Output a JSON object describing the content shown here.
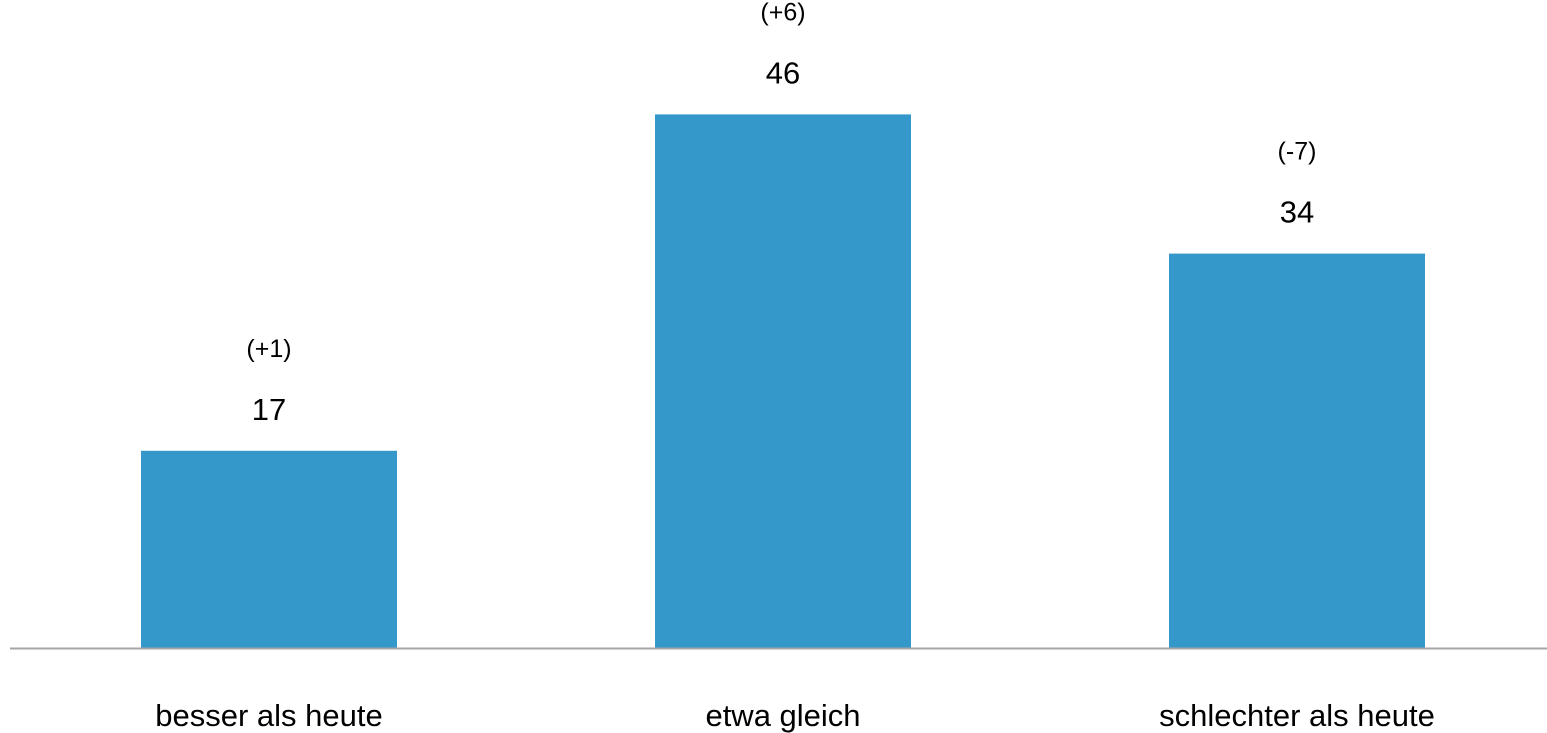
{
  "chart_data": {
    "type": "bar",
    "categories": [
      "besser als heute",
      "etwa gleich",
      "schlechter als heute"
    ],
    "values": [
      17,
      46,
      34
    ],
    "change_labels": [
      "(+1)",
      "(+6)",
      "(-7)"
    ],
    "title": "",
    "xlabel": "",
    "ylabel": "",
    "ylim": [
      0,
      50
    ],
    "grid": false,
    "legend": "none",
    "colors": {
      "bar": "#3498cb",
      "baseline": "#a6a6a6",
      "text": "#000000"
    }
  }
}
